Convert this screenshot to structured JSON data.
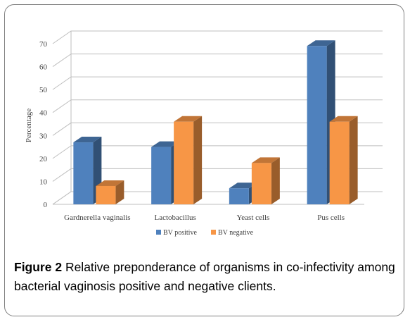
{
  "chart_data": {
    "type": "bar",
    "categories": [
      "Gardnerella vaginalis",
      "Lactobacillus",
      "Yeast cells",
      "Pus cells"
    ],
    "series": [
      {
        "name": "BV positive",
        "values": [
          27,
          25,
          7,
          69
        ],
        "color": "#4f81bd"
      },
      {
        "name": "BV negative",
        "values": [
          8,
          36,
          18,
          36
        ],
        "color": "#f79646"
      }
    ],
    "ylabel": "Percentage",
    "ylim": [
      0,
      70
    ],
    "yticks": [
      0,
      10,
      20,
      30,
      40,
      50,
      60,
      70
    ],
    "grid": true,
    "legend": "bottom"
  },
  "caption": {
    "label": "Figure 2",
    "text": " Relative preponderance of organisms in co-infectivity among bacterial vaginosis positive and negative clients."
  }
}
